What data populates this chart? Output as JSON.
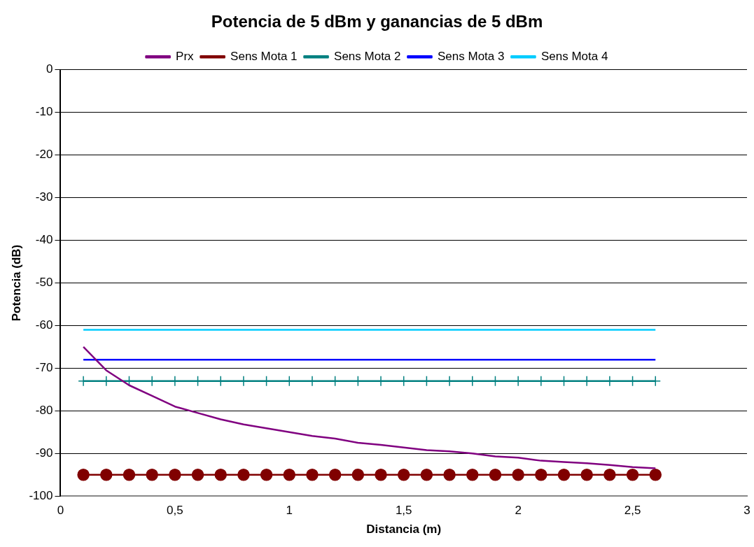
{
  "chart_data": {
    "type": "line",
    "title": "Potencia de 5 dBm y ganancias de 5 dBm",
    "xlabel": "Distancia (m)",
    "ylabel": "Potencia (dB)",
    "x": [
      0.1,
      0.2,
      0.3,
      0.4,
      0.5,
      0.6,
      0.7,
      0.8,
      0.9,
      1.0,
      1.1,
      1.2,
      1.3,
      1.4,
      1.5,
      1.6,
      1.7,
      1.8,
      1.9,
      2.0,
      2.1,
      2.2,
      2.3,
      2.4,
      2.5,
      2.6
    ],
    "series": [
      {
        "name": "Prx",
        "color": "#800080",
        "marker": "none",
        "values": [
          -65,
          -70.5,
          -74,
          -76.5,
          -79,
          -80.5,
          -82,
          -83.2,
          -84.1,
          -85,
          -85.9,
          -86.5,
          -87.5,
          -88,
          -88.6,
          -89.2,
          -89.5,
          -90,
          -90.7,
          -91,
          -91.7,
          -92,
          -92.3,
          -92.7,
          -93.2,
          -93.5
        ]
      },
      {
        "name": "Sens Mota 1",
        "color": "#800000",
        "marker": "circle",
        "values": [
          -95,
          -95,
          -95,
          -95,
          -95,
          -95,
          -95,
          -95,
          -95,
          -95,
          -95,
          -95,
          -95,
          -95,
          -95,
          -95,
          -95,
          -95,
          -95,
          -95,
          -95,
          -95,
          -95,
          -95,
          -95,
          -95
        ]
      },
      {
        "name": "Sens Mota 2",
        "color": "#008080",
        "marker": "cross",
        "values": [
          -73,
          -73,
          -73,
          -73,
          -73,
          -73,
          -73,
          -73,
          -73,
          -73,
          -73,
          -73,
          -73,
          -73,
          -73,
          -73,
          -73,
          -73,
          -73,
          -73,
          -73,
          -73,
          -73,
          -73,
          -73,
          -73
        ]
      },
      {
        "name": "Sens Mota 3",
        "color": "#0000ff",
        "marker": "none",
        "values": [
          -68,
          -68,
          -68,
          -68,
          -68,
          -68,
          -68,
          -68,
          -68,
          -68,
          -68,
          -68,
          -68,
          -68,
          -68,
          -68,
          -68,
          -68,
          -68,
          -68,
          -68,
          -68,
          -68,
          -68,
          -68,
          -68
        ]
      },
      {
        "name": "Sens Mota 4",
        "color": "#00ccff",
        "marker": "none",
        "values": [
          -61,
          -61,
          -61,
          -61,
          -61,
          -61,
          -61,
          -61,
          -61,
          -61,
          -61,
          -61,
          -61,
          -61,
          -61,
          -61,
          -61,
          -61,
          -61,
          -61,
          -61,
          -61,
          -61,
          -61,
          -61,
          -61
        ]
      }
    ],
    "xlim": [
      0,
      3
    ],
    "xticks": [
      {
        "value": 0,
        "label": "0"
      },
      {
        "value": 0.5,
        "label": "0,5"
      },
      {
        "value": 1,
        "label": "1"
      },
      {
        "value": 1.5,
        "label": "1,5"
      },
      {
        "value": 2,
        "label": "2"
      },
      {
        "value": 2.5,
        "label": "2,5"
      },
      {
        "value": 3,
        "label": "3"
      }
    ],
    "ylim": [
      -100,
      0
    ],
    "yticks": [
      -100,
      -90,
      -80,
      -70,
      -60,
      -50,
      -40,
      -30,
      -20,
      -10,
      0
    ],
    "grid": "y",
    "legend": "top"
  }
}
